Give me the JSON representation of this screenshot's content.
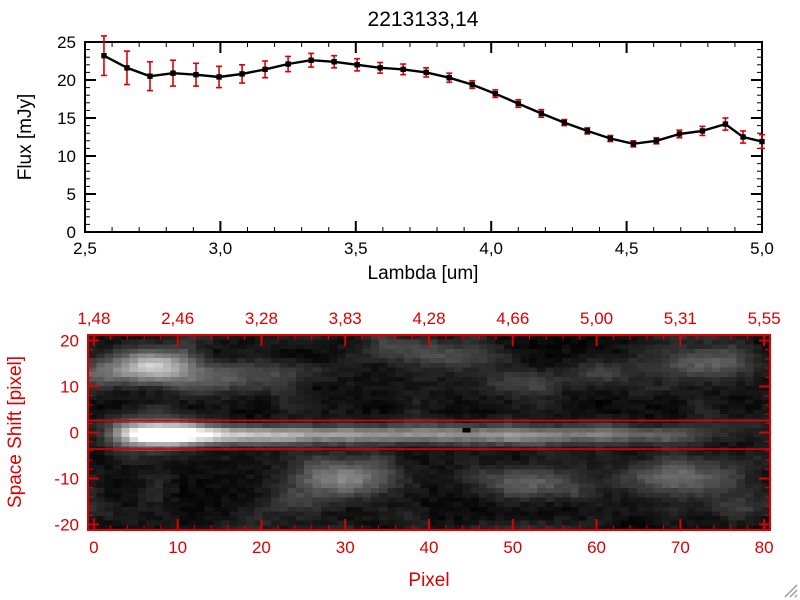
{
  "window": {
    "background": "#ffffff"
  },
  "colors": {
    "axis_black": "#000000",
    "accent_red": "#dd0000",
    "image_background": "#000000"
  },
  "chart_data": [
    {
      "type": "line",
      "title": "2213133,14",
      "xlabel": "Lambda [um]",
      "ylabel": "Flux [mJy]",
      "xlim": [
        2.5,
        5.0
      ],
      "ylim": [
        0,
        25
      ],
      "x_major_ticks": [
        2.5,
        3.0,
        3.5,
        4.0,
        4.5,
        5.0
      ],
      "x_tick_labels": [
        "2,5",
        "3,0",
        "3,5",
        "4,0",
        "4,5",
        "5,0"
      ],
      "y_major_ticks": [
        0,
        5,
        10,
        15,
        20,
        25
      ],
      "marker": "filled-square",
      "line_color": "#000000",
      "errorbar_color": "#dd0000",
      "grid": false,
      "x": [
        2.57,
        2.655,
        2.74,
        2.825,
        2.91,
        2.995,
        3.08,
        3.165,
        3.25,
        3.335,
        3.42,
        3.505,
        3.59,
        3.675,
        3.76,
        3.845,
        3.93,
        4.015,
        4.1,
        4.185,
        4.27,
        4.355,
        4.44,
        4.525,
        4.61,
        4.695,
        4.78,
        4.865,
        4.93,
        5.0
      ],
      "flux": [
        23.2,
        21.6,
        20.5,
        20.9,
        20.7,
        20.4,
        20.8,
        21.4,
        22.1,
        22.6,
        22.4,
        22.0,
        21.6,
        21.4,
        21.0,
        20.3,
        19.4,
        18.2,
        16.9,
        15.6,
        14.4,
        13.3,
        12.3,
        11.6,
        12.0,
        12.9,
        13.3,
        14.2,
        12.5,
        11.9
      ],
      "flux_err": [
        2.6,
        2.2,
        1.9,
        1.7,
        1.5,
        1.4,
        1.2,
        1.1,
        1.0,
        0.9,
        0.8,
        0.8,
        0.7,
        0.7,
        0.6,
        0.6,
        0.5,
        0.5,
        0.5,
        0.5,
        0.4,
        0.4,
        0.4,
        0.4,
        0.4,
        0.5,
        0.6,
        0.8,
        0.8,
        0.9
      ]
    },
    {
      "type": "heatmap",
      "xlabel": "Pixel",
      "ylabel": "Space Shift [pixel]",
      "axis_color": "#dd0000",
      "xlim": [
        -0.7,
        80.7
      ],
      "ylim": [
        -21.2,
        21.2
      ],
      "x_major_ticks": [
        0,
        10,
        20,
        30,
        40,
        50,
        60,
        70,
        80
      ],
      "y_major_ticks": [
        -20,
        -10,
        0,
        10,
        20
      ],
      "top_axis_labels": [
        "1,48",
        "2,46",
        "3,28",
        "3,83",
        "4,28",
        "4,66",
        "5,00",
        "5,31",
        "5,55"
      ],
      "aperture_lines_y": [
        2.6,
        -3.6
      ],
      "trace": {
        "y_center": -0.5,
        "sigma_y": 1.35,
        "profile_x": [
          -1,
          2,
          4,
          6,
          8,
          12,
          16,
          22,
          30,
          40,
          50,
          58,
          64,
          68,
          72,
          75,
          78,
          81
        ],
        "profile_i": [
          0,
          15,
          70,
          170,
          255,
          242,
          195,
          162,
          140,
          126,
          116,
          106,
          94,
          78,
          50,
          24,
          8,
          0
        ]
      },
      "blobs": [
        [
          7,
          14.5,
          3.2,
          2.4,
          185
        ],
        [
          14,
          12,
          4.5,
          2.2,
          70
        ],
        [
          1,
          12.5,
          2.5,
          2,
          60
        ],
        [
          22,
          13,
          3,
          1.8,
          42
        ],
        [
          8,
          -0.5,
          3.5,
          2.6,
          110
        ],
        [
          4,
          -0.5,
          2,
          2,
          70
        ],
        [
          30,
          -10,
          4.8,
          2.8,
          105
        ],
        [
          52,
          -11,
          4.2,
          2.4,
          85
        ],
        [
          70,
          -10,
          5,
          2.8,
          92
        ],
        [
          73,
          15,
          4.5,
          2.5,
          80
        ],
        [
          51,
          10.5,
          3.8,
          2,
          55
        ],
        [
          60,
          13,
          3,
          2,
          45
        ],
        [
          38,
          18.5,
          4,
          2,
          45
        ],
        [
          25,
          -15,
          3,
          2,
          30
        ],
        [
          44,
          16,
          3,
          2,
          35
        ],
        [
          78,
          -16,
          3,
          2,
          28
        ]
      ],
      "bad_pixel": [
        44,
        0.5
      ],
      "noise_amp": 18,
      "seed": 7
    }
  ]
}
